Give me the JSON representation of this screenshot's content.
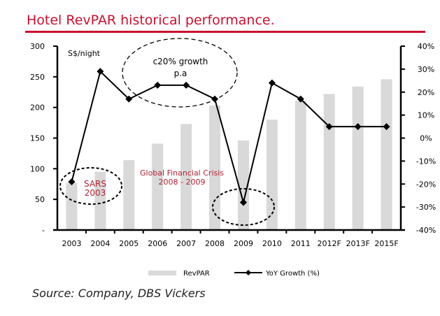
{
  "title": "Hotel RevPAR historical performance.",
  "source": "Source: Company, DBS Vickers",
  "chart_data": {
    "type": "bar+line",
    "categories": [
      "2003",
      "2004",
      "2005",
      "2006",
      "2007",
      "2008",
      "2009",
      "2010",
      "2011",
      "2012F",
      "2013F",
      "2015F"
    ],
    "series": [
      {
        "name": "RevPAR",
        "type": "bar",
        "axis": "left",
        "values": [
          77,
          95,
          114,
          141,
          173,
          203,
          146,
          180,
          211,
          222,
          234,
          246
        ]
      },
      {
        "name": "YoY Growth (%)",
        "type": "line",
        "axis": "right",
        "values": [
          -19,
          29,
          17,
          23,
          23,
          17,
          -28,
          24,
          17,
          5,
          5,
          5
        ]
      }
    ],
    "left_axis": {
      "label": "S$/night",
      "range": [
        0,
        300
      ],
      "ticks": [
        "-",
        "50",
        "100",
        "150",
        "200",
        "250",
        "300"
      ]
    },
    "right_axis": {
      "range": [
        -40,
        40
      ],
      "ticks": [
        "-40%",
        "-30%",
        "-20%",
        "-10%",
        "0%",
        "10%",
        "20%",
        "30%",
        "40%"
      ]
    },
    "annotations": [
      "c20% growth",
      "p.a",
      "SARS",
      "2003",
      "Global Financial Crisis",
      "2008 - 2009"
    ],
    "legend": [
      "RevPAR",
      "YoY Growth (%)"
    ],
    "colors": {
      "bar": "#d9d9d9",
      "line": "#000000",
      "annotation": "#b22234",
      "title": "#c8102e"
    }
  }
}
